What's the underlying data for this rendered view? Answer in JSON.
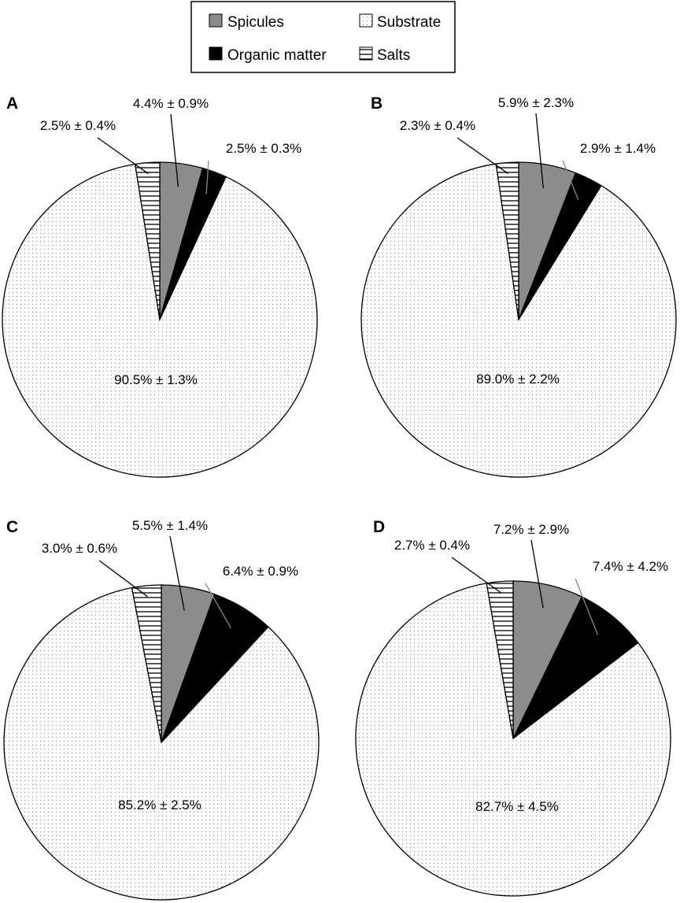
{
  "legend": {
    "items": [
      {
        "key": "spicules",
        "label": "Spicules"
      },
      {
        "key": "substrate",
        "label": "Substrate"
      },
      {
        "key": "organic",
        "label": "Organic matter"
      },
      {
        "key": "salts",
        "label": "Salts"
      }
    ]
  },
  "colors": {
    "spicules": "#8c8c8c",
    "organic": "#000000",
    "substrate_dots": "#9a9a9a",
    "salts_lines": "#000000",
    "outline": "#000000"
  },
  "chart_data": [
    {
      "type": "pie",
      "panel": "A",
      "categories": [
        "Spicules",
        "Organic matter",
        "Substrate",
        "Salts"
      ],
      "values": [
        4.4,
        2.5,
        90.5,
        2.5
      ],
      "labels": [
        "4.4% ± 0.9%",
        "2.5% ± 0.3%",
        "90.5% ± 1.3%",
        "2.5% ± 0.4%"
      ]
    },
    {
      "type": "pie",
      "panel": "B",
      "categories": [
        "Spicules",
        "Organic matter",
        "Substrate",
        "Salts"
      ],
      "values": [
        5.9,
        2.9,
        89.0,
        2.3
      ],
      "labels": [
        "5.9% ± 2.3%",
        "2.9% ± 1.4%",
        "89.0% ± 2.2%",
        "2.3% ± 0.4%"
      ]
    },
    {
      "type": "pie",
      "panel": "C",
      "categories": [
        "Spicules",
        "Organic matter",
        "Substrate",
        "Salts"
      ],
      "values": [
        5.5,
        6.4,
        85.2,
        3.0
      ],
      "labels": [
        "5.5% ± 1.4%",
        "6.4% ± 0.9%",
        "85.2% ± 2.5%",
        "3.0% ± 0.6%"
      ]
    },
    {
      "type": "pie",
      "panel": "D",
      "categories": [
        "Spicules",
        "Organic matter",
        "Substrate",
        "Salts"
      ],
      "values": [
        7.2,
        7.4,
        82.7,
        2.7
      ],
      "labels": [
        "7.2% ± 2.9%",
        "7.4% ± 4.2%",
        "82.7% ± 4.5%",
        "2.7% ± 0.4%"
      ]
    }
  ]
}
